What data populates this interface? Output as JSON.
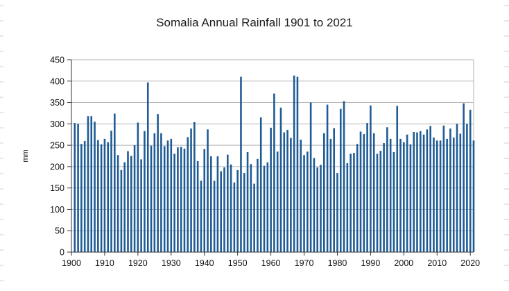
{
  "chart_data": {
    "type": "bar",
    "title": "Somalia Annual Rainfall 1901 to 2021",
    "xlabel": "",
    "ylabel": "mm",
    "xlim": [
      1900,
      2021
    ],
    "ylim": [
      0,
      450
    ],
    "yticks": [
      0,
      50,
      100,
      150,
      200,
      250,
      300,
      350,
      400,
      450
    ],
    "xticks": [
      1900,
      1910,
      1920,
      1930,
      1940,
      1950,
      1960,
      1970,
      1980,
      1990,
      2000,
      2010,
      2020
    ],
    "grid": true,
    "legend": "none",
    "bar_color": "#1f5b94",
    "x": [
      1901,
      1902,
      1903,
      1904,
      1905,
      1906,
      1907,
      1908,
      1909,
      1910,
      1911,
      1912,
      1913,
      1914,
      1915,
      1916,
      1917,
      1918,
      1919,
      1920,
      1921,
      1922,
      1923,
      1924,
      1925,
      1926,
      1927,
      1928,
      1929,
      1930,
      1931,
      1932,
      1933,
      1934,
      1935,
      1936,
      1937,
      1938,
      1939,
      1940,
      1941,
      1942,
      1943,
      1944,
      1945,
      1946,
      1947,
      1948,
      1949,
      1950,
      1951,
      1952,
      1953,
      1954,
      1955,
      1956,
      1957,
      1958,
      1959,
      1960,
      1961,
      1962,
      1963,
      1964,
      1965,
      1966,
      1967,
      1968,
      1969,
      1970,
      1971,
      1972,
      1973,
      1974,
      1975,
      1976,
      1977,
      1978,
      1979,
      1980,
      1981,
      1982,
      1983,
      1984,
      1985,
      1986,
      1987,
      1988,
      1989,
      1990,
      1991,
      1992,
      1993,
      1994,
      1995,
      1996,
      1997,
      1998,
      1999,
      2000,
      2001,
      2002,
      2003,
      2004,
      2005,
      2006,
      2007,
      2008,
      2009,
      2010,
      2011,
      2012,
      2013,
      2014,
      2015,
      2016,
      2017,
      2018,
      2019,
      2020,
      2021
    ],
    "values": [
      302,
      300,
      253,
      260,
      318,
      318,
      305,
      262,
      252,
      265,
      257,
      284,
      324,
      227,
      192,
      210,
      236,
      225,
      250,
      303,
      217,
      283,
      397,
      249,
      278,
      323,
      278,
      248,
      261,
      265,
      230,
      245,
      246,
      242,
      269,
      289,
      304,
      213,
      167,
      241,
      287,
      224,
      167,
      224,
      189,
      198,
      228,
      205,
      163,
      192,
      410,
      185,
      234,
      206,
      160,
      218,
      315,
      202,
      210,
      291,
      371,
      235,
      338,
      280,
      286,
      267,
      413,
      410,
      263,
      227,
      235,
      350,
      220,
      198,
      204,
      278,
      345,
      265,
      290,
      185,
      335,
      353,
      208,
      230,
      232,
      253,
      282,
      276,
      302,
      343,
      278,
      230,
      237,
      255,
      292,
      265,
      234,
      342,
      265,
      257,
      275,
      252,
      281,
      280,
      283,
      275,
      287,
      295,
      268,
      261,
      261,
      296,
      265,
      289,
      268,
      300,
      277,
      348,
      300,
      333,
      261
    ]
  }
}
